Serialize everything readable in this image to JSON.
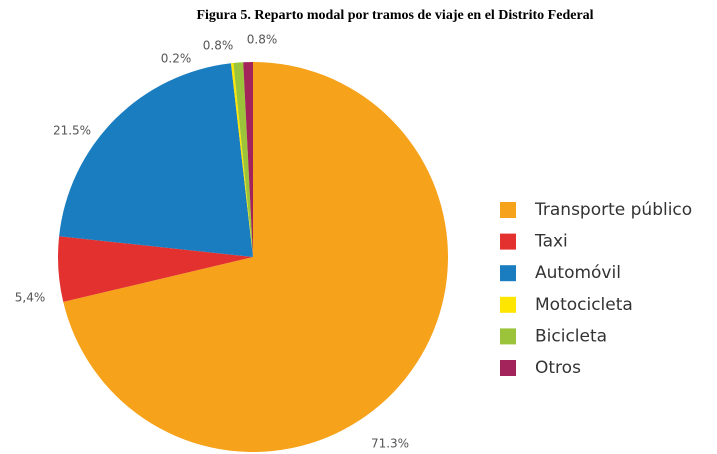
{
  "chart_data": {
    "type": "pie",
    "title": "Figura 5. Reparto modal por tramos de viaje en el Distrito Federal",
    "categories": [
      "Transporte público",
      "Taxi",
      "Automóvil",
      "Motocicleta",
      "Bicicleta",
      "Otros"
    ],
    "values": [
      71.3,
      5.4,
      21.5,
      0.2,
      0.8,
      0.8
    ],
    "value_labels": [
      "71.3%",
      "5,4%",
      "21.5%",
      "0.2%",
      "0.8%",
      "0.8%"
    ],
    "colors": [
      "#f7a21b",
      "#e2312f",
      "#1a7dc0",
      "#ffe600",
      "#9cc43a",
      "#a3245a"
    ],
    "legend": "right"
  }
}
